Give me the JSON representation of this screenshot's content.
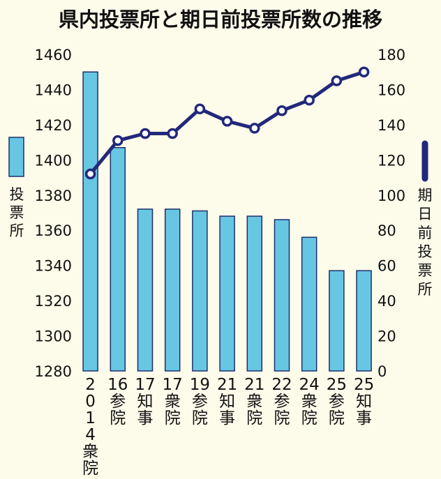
{
  "chart_data": {
    "type": "bar",
    "title": "県内投票所と期日前投票所数の推移",
    "categories": [
      "2014衆院",
      "16参院",
      "17知事",
      "17衆院",
      "19参院",
      "21知事",
      "21衆院",
      "22参院",
      "24衆院",
      "25参院",
      "25知事"
    ],
    "series": [
      {
        "name": "投票所",
        "type": "bar",
        "axis": "left",
        "values": [
          1450,
          1407,
          1372,
          1372,
          1371,
          1368,
          1368,
          1366,
          1356,
          1337,
          1337
        ]
      },
      {
        "name": "期日前投票所",
        "type": "line",
        "axis": "right",
        "values": [
          112,
          131,
          135,
          135,
          149,
          142,
          138,
          148,
          154,
          165,
          170
        ]
      }
    ],
    "y_left": {
      "min": 1280,
      "max": 1460,
      "ticks": [
        1280,
        1300,
        1320,
        1340,
        1360,
        1380,
        1400,
        1420,
        1440,
        1460
      ]
    },
    "y_right": {
      "min": 0,
      "max": 180,
      "ticks": [
        0,
        20,
        40,
        60,
        80,
        100,
        120,
        140,
        160,
        180
      ]
    },
    "grid": false,
    "legend": "left and right sides, vertical text",
    "colors": {
      "bar": "#67c7e2",
      "bar_edge": "#1d2f6d",
      "line": "#22287a",
      "background": "#fdfbea"
    }
  }
}
